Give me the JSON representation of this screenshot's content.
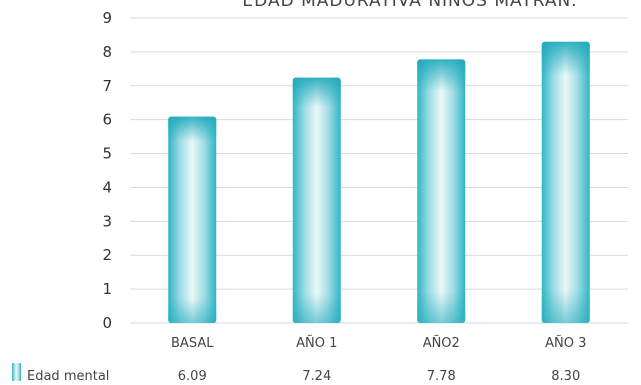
{
  "chart_data": {
    "type": "bar",
    "title": "EDAD MADURATIVA NIÑOS MATRAN.",
    "categories": [
      "BASAL",
      "AÑO 1",
      "AÑO2",
      "AÑO 3"
    ],
    "series": [
      {
        "name": "Edad mental",
        "values": [
          6.09,
          7.24,
          7.78,
          8.3
        ]
      }
    ],
    "value_labels": [
      "6.09",
      "7.24",
      "7.78",
      "8.30"
    ],
    "ylim": [
      0,
      9
    ],
    "yticks": [
      0,
      1,
      2,
      3,
      4,
      5,
      6,
      7,
      8,
      9
    ],
    "grid": true,
    "legend": "bottom-left data table",
    "colors": {
      "bar": "#26b3c4",
      "bar_light": "#e8f7f8",
      "grid": "#d9d9d9"
    }
  }
}
